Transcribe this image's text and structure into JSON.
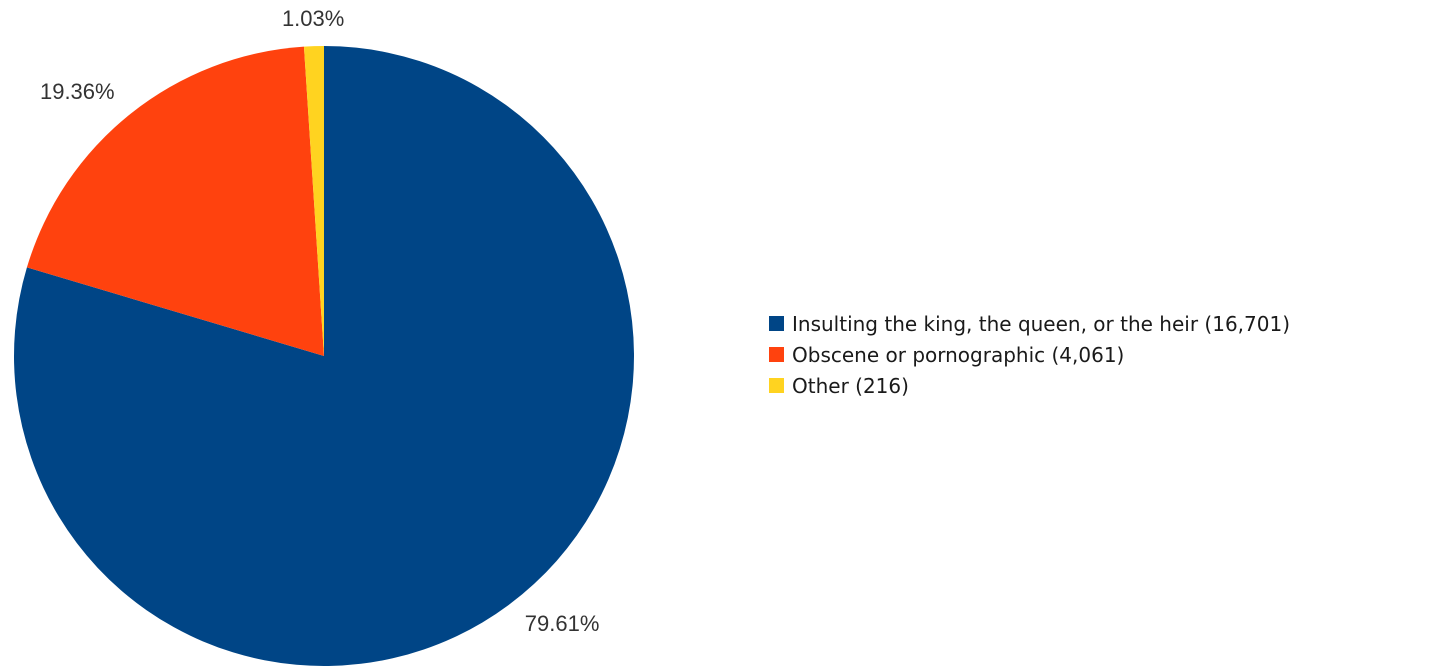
{
  "chart_data": {
    "type": "pie",
    "start_angle_deg": 0,
    "direction": "clockwise",
    "legend_position": "right",
    "slices": [
      {
        "label": "Insulting the king, the queen, or the heir (16,701)",
        "value": 16701,
        "percent_label": "79.61%",
        "color": "#004586"
      },
      {
        "label": "Obscene or pornographic  (4,061)",
        "value": 4061,
        "percent_label": "19.36%",
        "color": "#ff420e"
      },
      {
        "label": "Other (216)",
        "value": 216,
        "percent_label": "1.03%",
        "color": "#ffd320"
      }
    ]
  }
}
